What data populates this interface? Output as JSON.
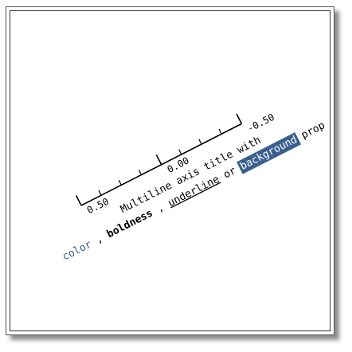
{
  "chart_data": {
    "type": "axis",
    "orientation": "reversed",
    "range": [
      -0.5,
      0.5
    ],
    "ticks": [
      0.5,
      0.0,
      -0.5
    ],
    "tick_labels": [
      "0.50",
      "0.00",
      "-0.50"
    ],
    "minor_ticks_per_interval": 4,
    "title": {
      "line1": "Multiline axis title with",
      "line2_parts": [
        {
          "text": "color",
          "style": "color",
          "color": "#3a5f8f"
        },
        {
          "text": " , ",
          "style": "plain"
        },
        {
          "text": "boldness",
          "style": "bold"
        },
        {
          "text": " , ",
          "style": "plain"
        },
        {
          "text": "underline",
          "style": "underline"
        },
        {
          "text": " or ",
          "style": "plain"
        },
        {
          "text": "background",
          "style": "highlight",
          "color": "#3a5f8f"
        },
        {
          "text": " prop",
          "style": "plain"
        }
      ]
    },
    "colors": {
      "axis": "#000000",
      "accent": "#3a5f8f"
    }
  }
}
